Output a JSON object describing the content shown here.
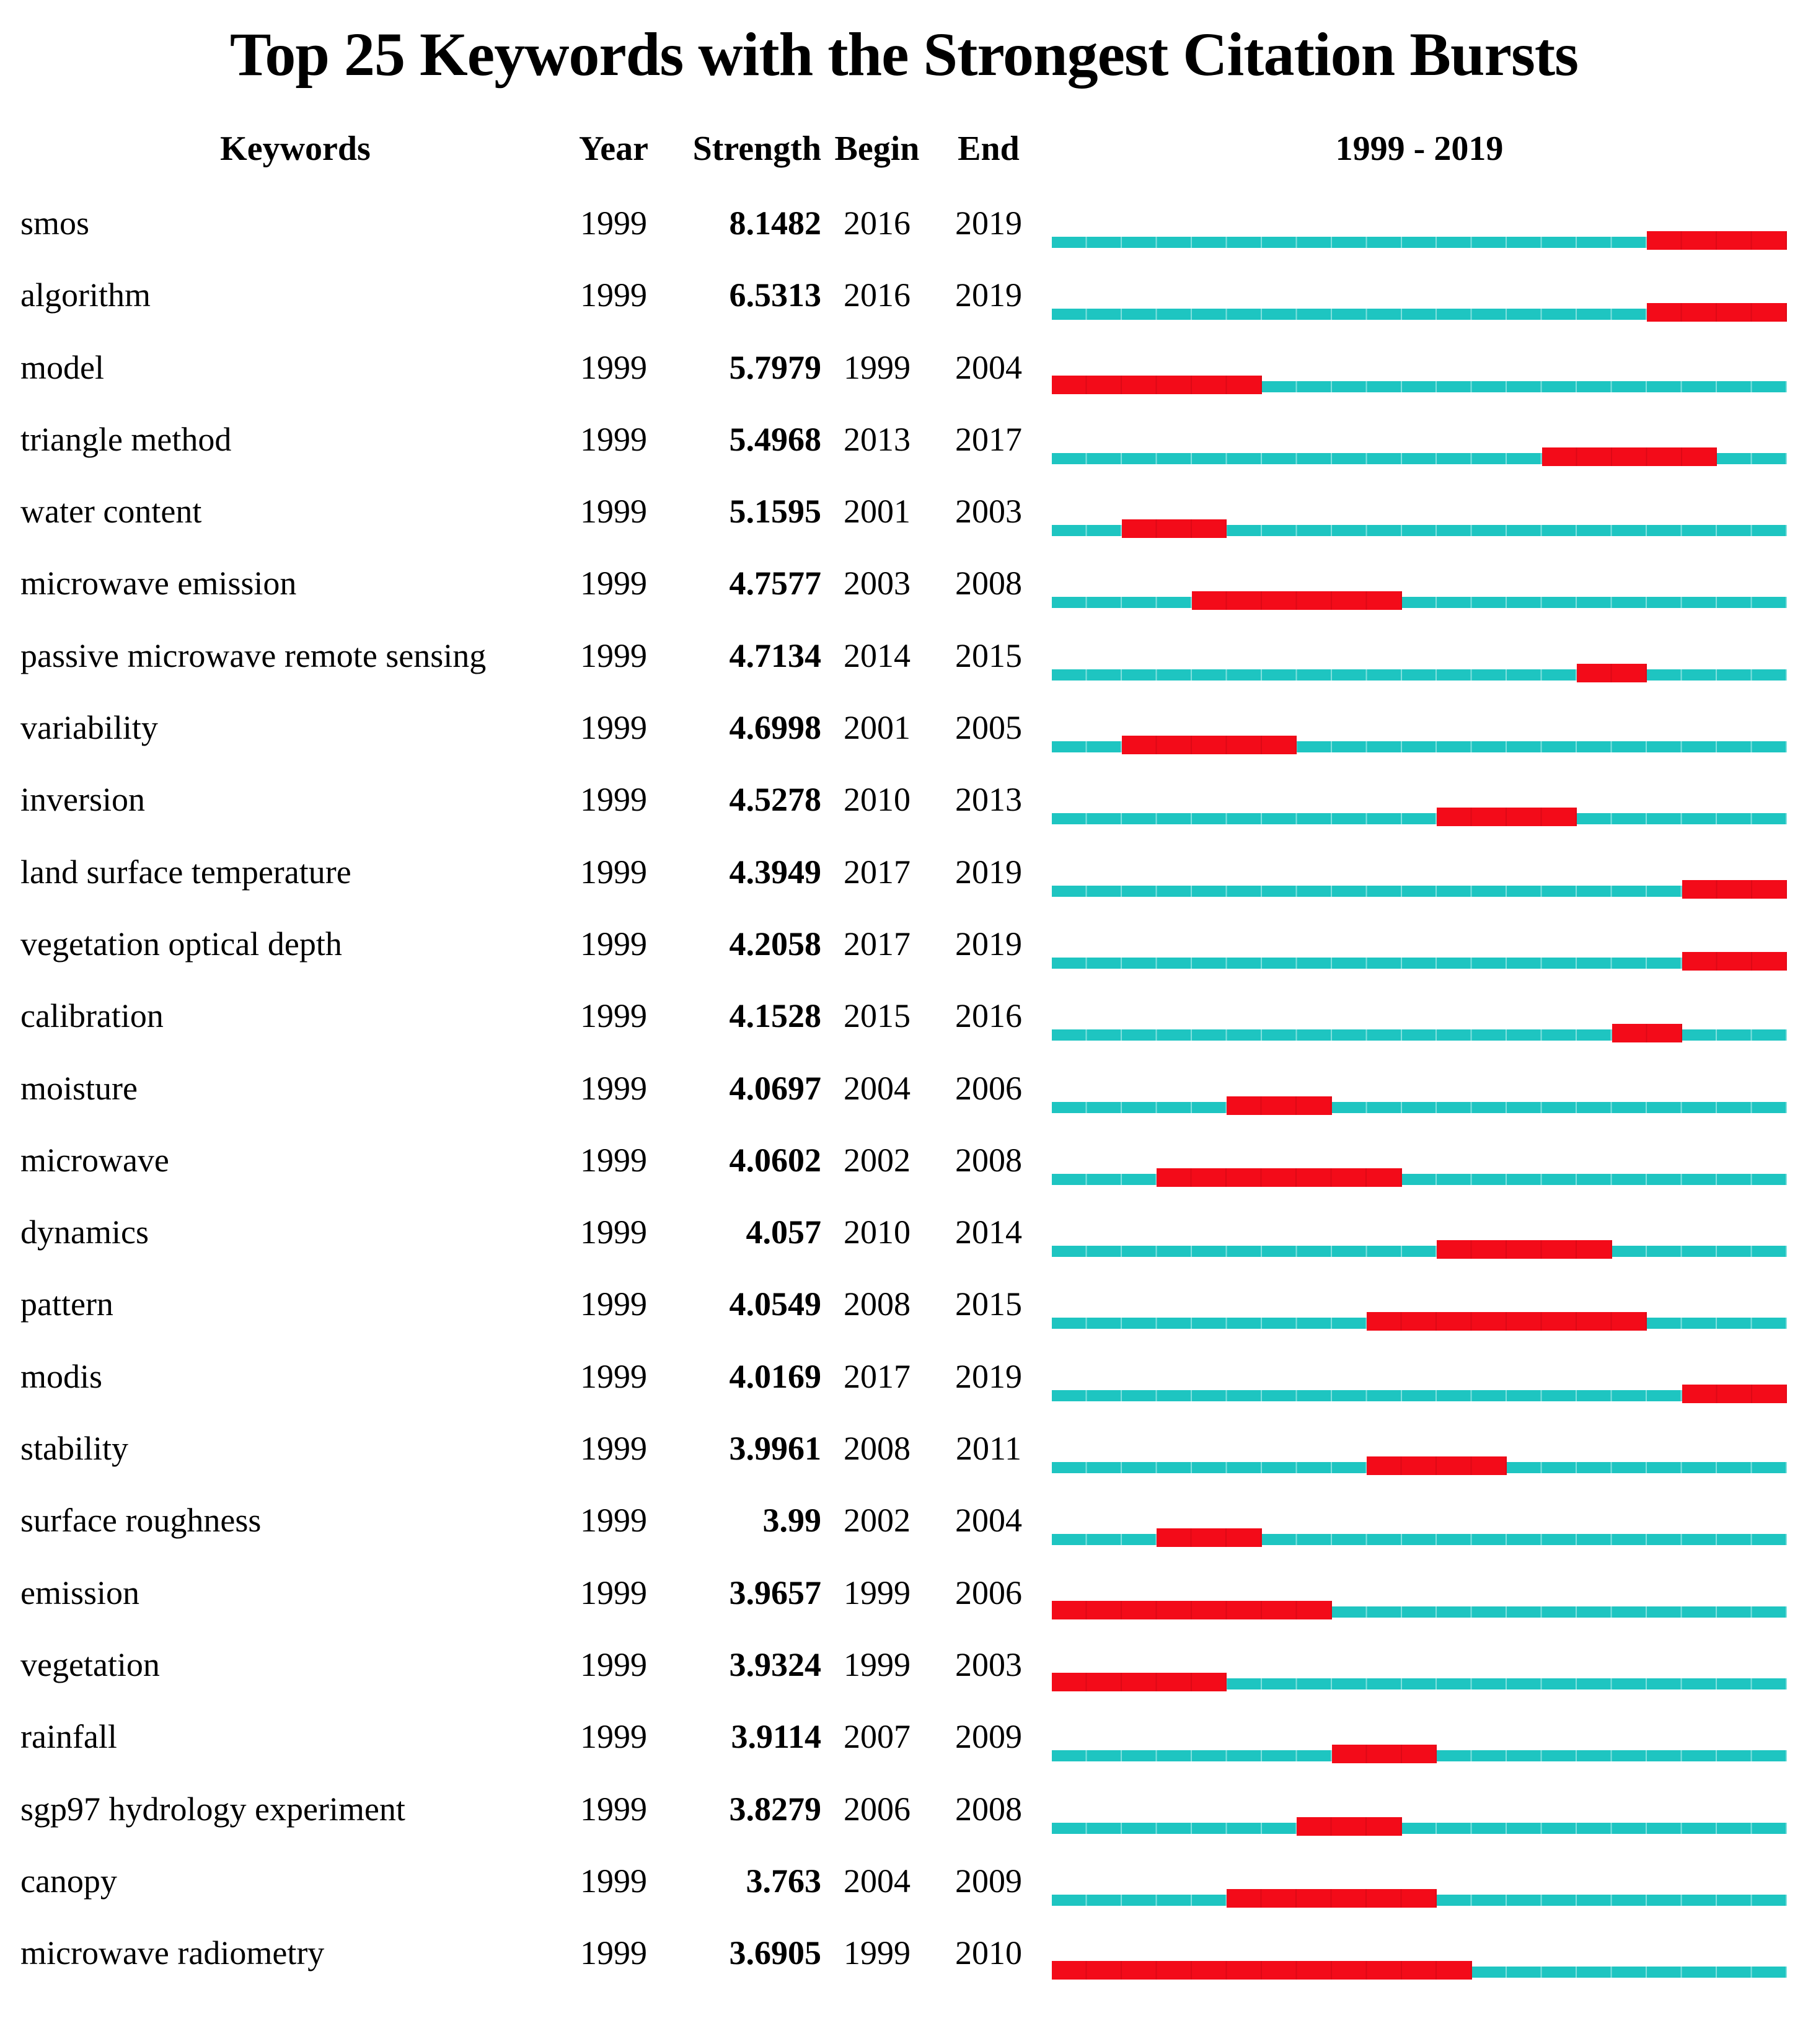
{
  "title": "Top 25 Keywords with the Strongest Citation Bursts",
  "columns": {
    "keywords": "Keywords",
    "year": "Year",
    "strength": "Strength",
    "begin": "Begin",
    "end": "End",
    "timeline": "1999 - 2019"
  },
  "timeline": {
    "start_year": 1999,
    "end_year": 2019,
    "total_year_cells": 21
  },
  "colors": {
    "track": "#1EC5C1",
    "burst": "#F30B19",
    "text": "#000000",
    "background": "#FFFFFF"
  },
  "chart_data": {
    "type": "table",
    "title": "Top 25 Keywords with the Strongest Citation Bursts",
    "columns": [
      "Keywords",
      "Year",
      "Strength",
      "Begin",
      "End",
      "1999 - 2019"
    ],
    "timeline_range": [
      1999,
      2019
    ],
    "bar_legend": {
      "track_meaning": "full period 1999-2019",
      "burst_meaning": "citation burst interval (begin-end inclusive)"
    },
    "rows": [
      {
        "keyword": "smos",
        "year": "1999",
        "strength": "8.1482",
        "begin": 2016,
        "end": 2019
      },
      {
        "keyword": "algorithm",
        "year": "1999",
        "strength": "6.5313",
        "begin": 2016,
        "end": 2019
      },
      {
        "keyword": "model",
        "year": "1999",
        "strength": "5.7979",
        "begin": 1999,
        "end": 2004
      },
      {
        "keyword": "triangle method",
        "year": "1999",
        "strength": "5.4968",
        "begin": 2013,
        "end": 2017
      },
      {
        "keyword": "water content",
        "year": "1999",
        "strength": "5.1595",
        "begin": 2001,
        "end": 2003
      },
      {
        "keyword": "microwave emission",
        "year": "1999",
        "strength": "4.7577",
        "begin": 2003,
        "end": 2008
      },
      {
        "keyword": "passive microwave remote sensing",
        "year": "1999",
        "strength": "4.7134",
        "begin": 2014,
        "end": 2015
      },
      {
        "keyword": "variability",
        "year": "1999",
        "strength": "4.6998",
        "begin": 2001,
        "end": 2005
      },
      {
        "keyword": "inversion",
        "year": "1999",
        "strength": "4.5278",
        "begin": 2010,
        "end": 2013
      },
      {
        "keyword": "land surface temperature",
        "year": "1999",
        "strength": "4.3949",
        "begin": 2017,
        "end": 2019
      },
      {
        "keyword": "vegetation optical depth",
        "year": "1999",
        "strength": "4.2058",
        "begin": 2017,
        "end": 2019
      },
      {
        "keyword": "calibration",
        "year": "1999",
        "strength": "4.1528",
        "begin": 2015,
        "end": 2016
      },
      {
        "keyword": "moisture",
        "year": "1999",
        "strength": "4.0697",
        "begin": 2004,
        "end": 2006
      },
      {
        "keyword": "microwave",
        "year": "1999",
        "strength": "4.0602",
        "begin": 2002,
        "end": 2008
      },
      {
        "keyword": "dynamics",
        "year": "1999",
        "strength": "4.057",
        "begin": 2010,
        "end": 2014
      },
      {
        "keyword": "pattern",
        "year": "1999",
        "strength": "4.0549",
        "begin": 2008,
        "end": 2015
      },
      {
        "keyword": "modis",
        "year": "1999",
        "strength": "4.0169",
        "begin": 2017,
        "end": 2019
      },
      {
        "keyword": "stability",
        "year": "1999",
        "strength": "3.9961",
        "begin": 2008,
        "end": 2011
      },
      {
        "keyword": "surface roughness",
        "year": "1999",
        "strength": "3.99",
        "begin": 2002,
        "end": 2004
      },
      {
        "keyword": "emission",
        "year": "1999",
        "strength": "3.9657",
        "begin": 1999,
        "end": 2006
      },
      {
        "keyword": "vegetation",
        "year": "1999",
        "strength": "3.9324",
        "begin": 1999,
        "end": 2003
      },
      {
        "keyword": "rainfall",
        "year": "1999",
        "strength": "3.9114",
        "begin": 2007,
        "end": 2009
      },
      {
        "keyword": "sgp97 hydrology experiment",
        "year": "1999",
        "strength": "3.8279",
        "begin": 2006,
        "end": 2008
      },
      {
        "keyword": "canopy",
        "year": "1999",
        "strength": "3.763",
        "begin": 2004,
        "end": 2009
      },
      {
        "keyword": "microwave radiometry",
        "year": "1999",
        "strength": "3.6905",
        "begin": 1999,
        "end": 2010
      }
    ]
  }
}
